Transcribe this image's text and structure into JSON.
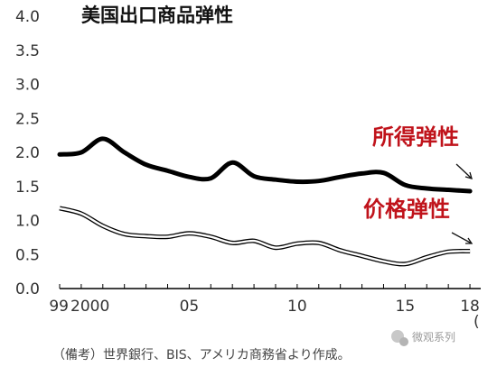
{
  "chart_data": {
    "type": "line",
    "title": "美国出口商品弹性",
    "x": [
      1999,
      2000,
      2001,
      2002,
      2003,
      2004,
      2005,
      2006,
      2007,
      2008,
      2009,
      2010,
      2011,
      2012,
      2013,
      2014,
      2015,
      2016,
      2017,
      2018
    ],
    "xlim": [
      1999,
      2018.5
    ],
    "ylim": [
      0.0,
      4.0
    ],
    "yticks": [
      "0.0",
      "0.5",
      "1.0",
      "1.5",
      "2.0",
      "2.5",
      "3.0",
      "3.5",
      "4.0"
    ],
    "xticks": [
      {
        "value": 1999,
        "label": "99"
      },
      {
        "value": 2000,
        "label": "2000"
      },
      {
        "value": 2005,
        "label": "05"
      },
      {
        "value": 2010,
        "label": "10"
      },
      {
        "value": 2015,
        "label": "15"
      },
      {
        "value": 2018,
        "label": "18"
      }
    ],
    "grid": false,
    "series": [
      {
        "name": "所得弹性",
        "color": "#000000",
        "style": "solid-thick",
        "values": [
          1.97,
          2.0,
          2.2,
          2.0,
          1.82,
          1.73,
          1.64,
          1.62,
          1.85,
          1.65,
          1.6,
          1.57,
          1.58,
          1.64,
          1.69,
          1.7,
          1.52,
          1.47,
          1.45,
          1.43
        ]
      },
      {
        "name": "价格弹性",
        "color": "#000000",
        "style": "double-outline",
        "values": [
          1.18,
          1.1,
          0.92,
          0.8,
          0.77,
          0.76,
          0.81,
          0.76,
          0.67,
          0.7,
          0.6,
          0.66,
          0.67,
          0.56,
          0.48,
          0.4,
          0.36,
          0.46,
          0.54,
          0.55
        ]
      }
    ],
    "series_label_color": "#c0131b",
    "annotation_18": "(",
    "note": "（備考）世界銀行、BIS、アメリカ商務省より作成。"
  },
  "watermark": {
    "text": "微观系列",
    "icon": "chat-bubble-icon"
  }
}
